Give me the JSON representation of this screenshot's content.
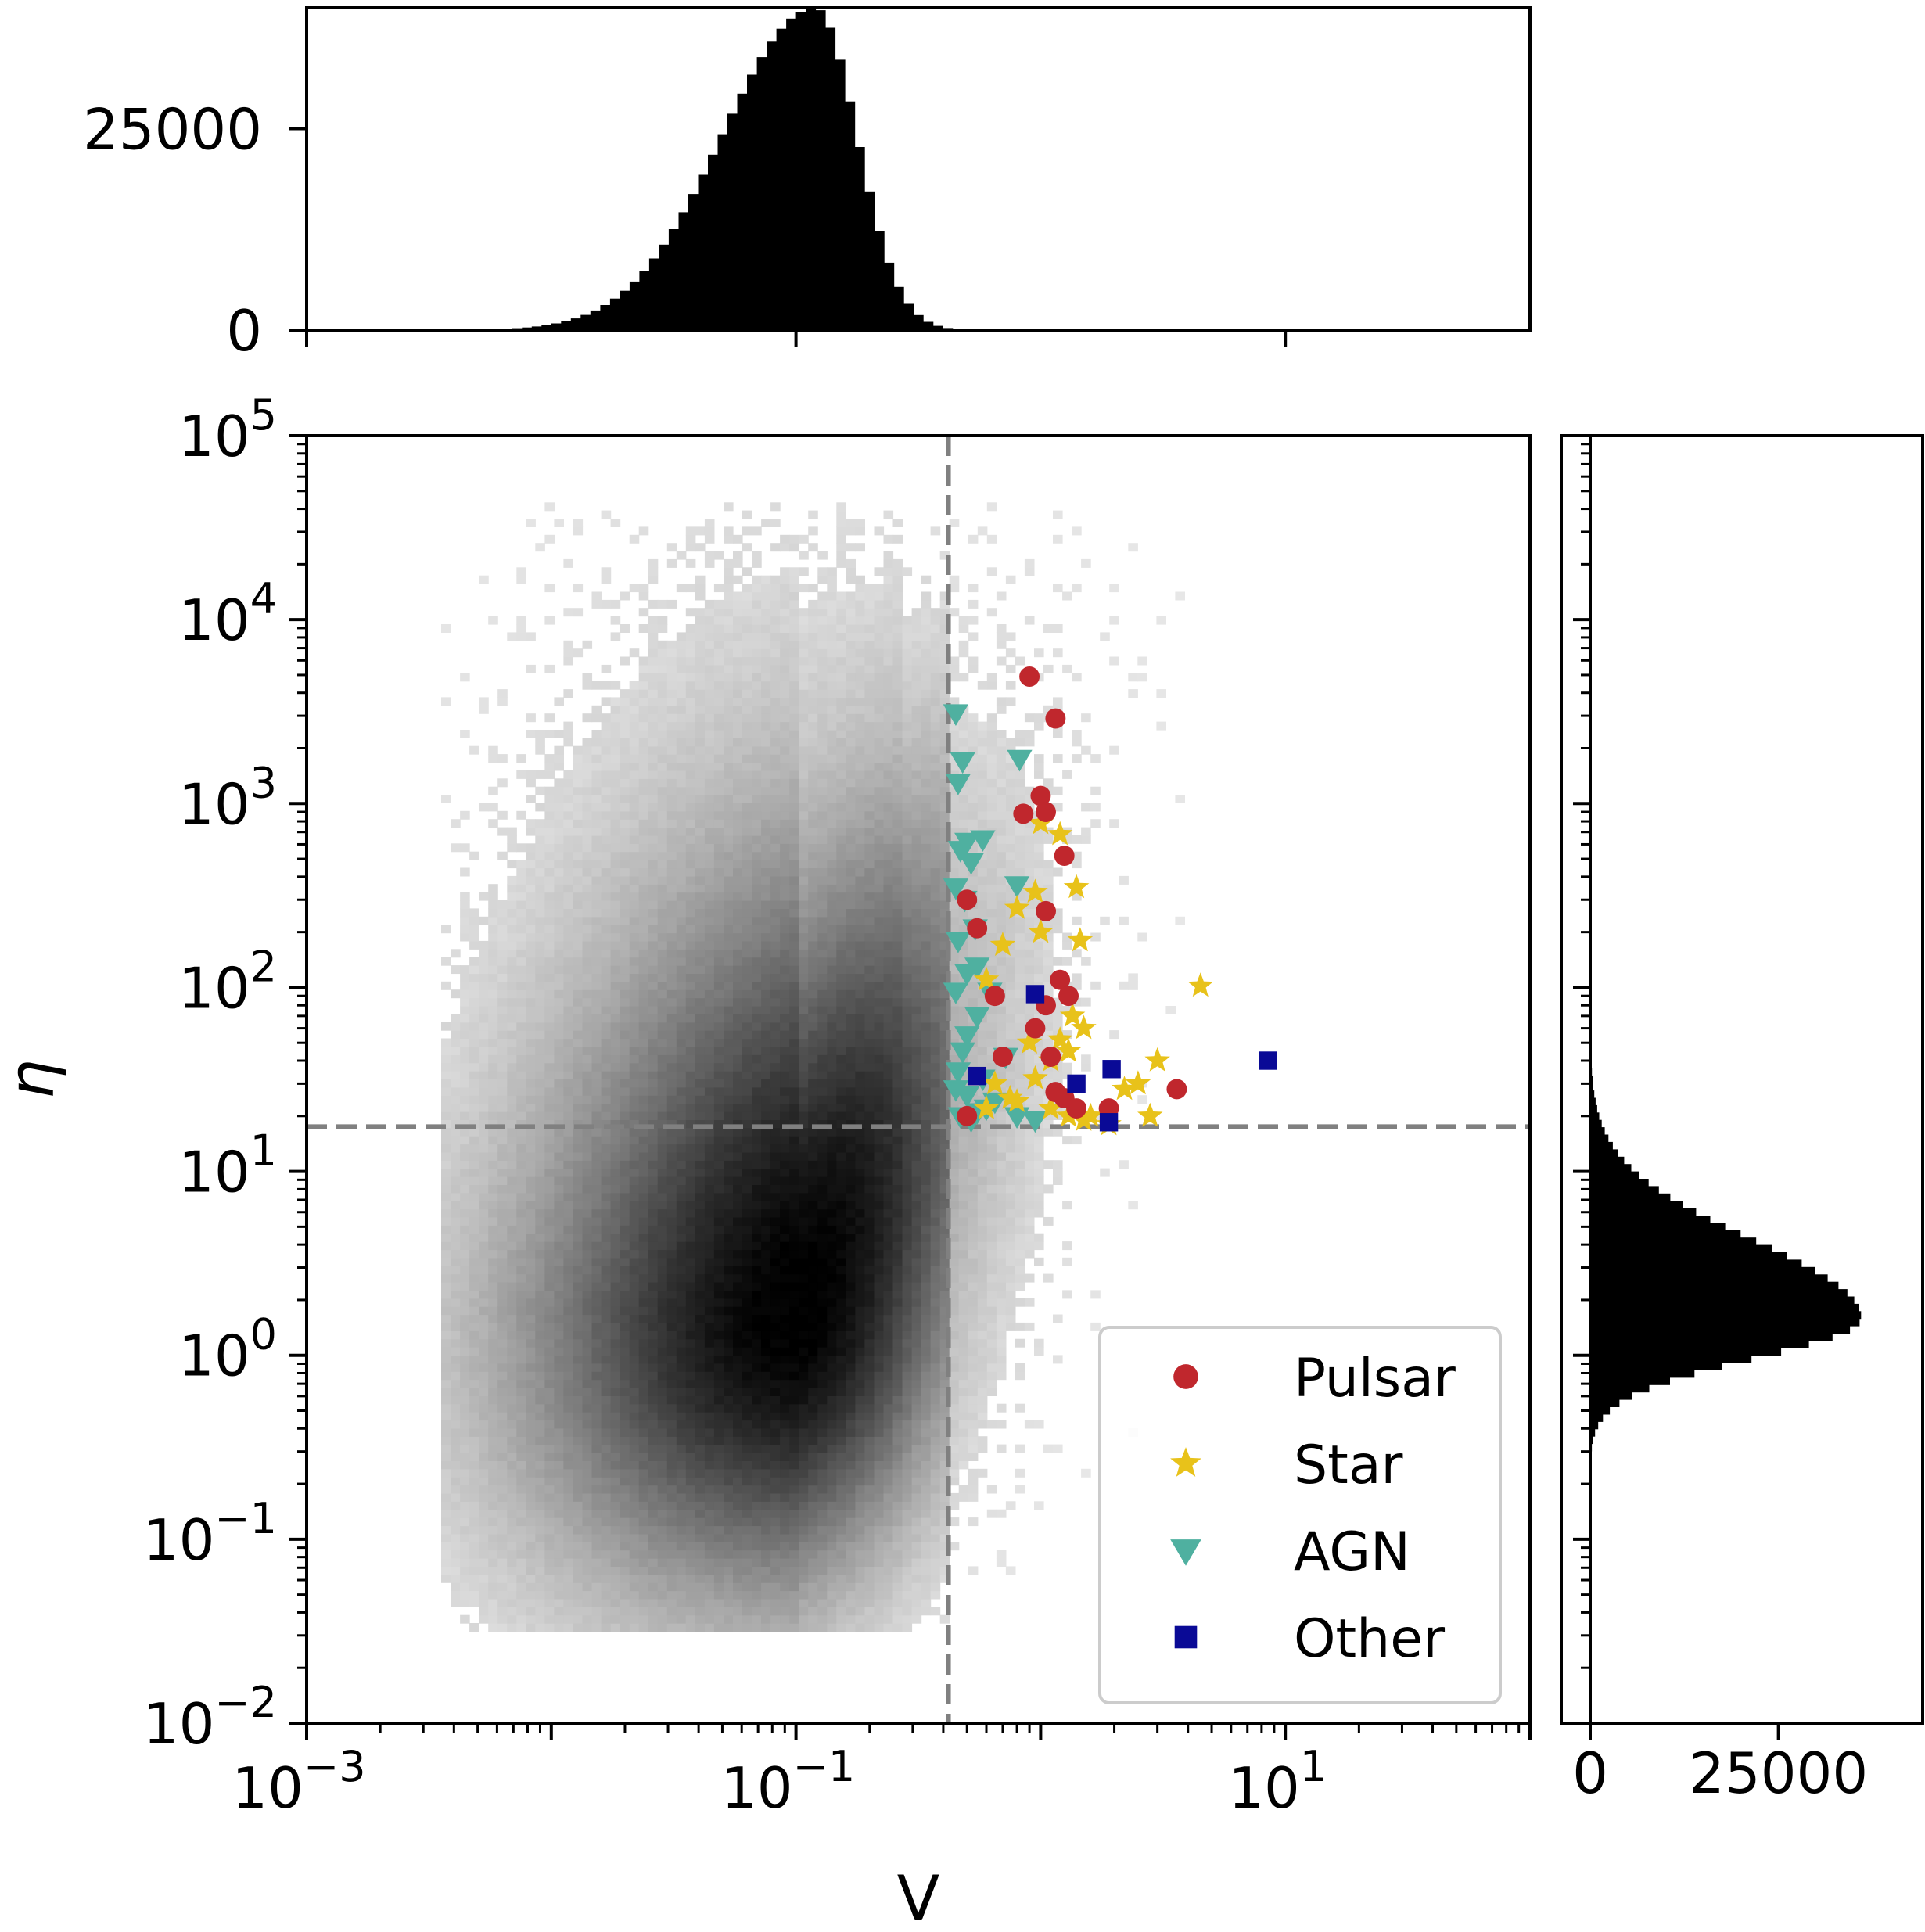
{
  "chart_data": {
    "type": "scatter",
    "xlabel": "V",
    "ylabel": "η",
    "xscale": "log",
    "yscale": "log",
    "xlim": [
      0.001,
      100
    ],
    "ylim": [
      0.01,
      100000
    ],
    "x_tick_labels": [
      "10^-3",
      "10^-1",
      "10^1"
    ],
    "y_tick_labels": [
      "10^-2",
      "10^-1",
      "10^0",
      "10^1",
      "10^2",
      "10^3",
      "10^4",
      "10^5"
    ],
    "thresholds": {
      "V": 0.42,
      "eta": 17.5
    },
    "legend": {
      "position": "lower right",
      "entries": [
        "Pulsar",
        "Star",
        "AGN",
        "Other"
      ]
    },
    "colors": {
      "Pulsar": "#c0272d",
      "Star": "#e8c21a",
      "AGN": "#4fb0a0",
      "Other": "#0a0a96",
      "threshold": "#808080"
    },
    "series": [
      {
        "name": "Pulsar",
        "marker": "circle",
        "points": [
          [
            0.9,
            4900
          ],
          [
            1.15,
            2900
          ],
          [
            1.0,
            1100
          ],
          [
            0.85,
            880
          ],
          [
            1.05,
            900
          ],
          [
            1.25,
            520
          ],
          [
            1.05,
            260
          ],
          [
            0.5,
            300
          ],
          [
            0.55,
            210
          ],
          [
            0.65,
            90
          ],
          [
            1.2,
            110
          ],
          [
            1.3,
            90
          ],
          [
            1.05,
            80
          ],
          [
            0.95,
            60
          ],
          [
            1.1,
            42
          ],
          [
            0.7,
            42
          ],
          [
            1.15,
            27
          ],
          [
            1.25,
            25
          ],
          [
            1.9,
            22
          ],
          [
            3.6,
            28
          ],
          [
            0.5,
            20
          ],
          [
            1.4,
            22
          ]
        ]
      },
      {
        "name": "Star",
        "marker": "star",
        "points": [
          [
            1.0,
            780
          ],
          [
            1.2,
            680
          ],
          [
            0.95,
            330
          ],
          [
            1.4,
            350
          ],
          [
            0.8,
            270
          ],
          [
            1.45,
            180
          ],
          [
            1.0,
            200
          ],
          [
            0.7,
            170
          ],
          [
            0.6,
            110
          ],
          [
            1.35,
            70
          ],
          [
            1.5,
            60
          ],
          [
            1.3,
            45
          ],
          [
            1.1,
            40
          ],
          [
            0.9,
            50
          ],
          [
            1.2,
            52
          ],
          [
            0.65,
            30
          ],
          [
            0.75,
            25
          ],
          [
            0.95,
            32
          ],
          [
            1.1,
            22
          ],
          [
            1.3,
            20
          ],
          [
            1.6,
            20
          ],
          [
            2.2,
            28
          ],
          [
            3.0,
            40
          ],
          [
            4.5,
            102
          ],
          [
            2.8,
            20
          ],
          [
            1.9,
            18
          ],
          [
            1.5,
            19
          ],
          [
            0.8,
            24
          ],
          [
            0.6,
            22
          ],
          [
            2.5,
            30
          ]
        ]
      },
      {
        "name": "AGN",
        "marker": "triangle-down",
        "points": [
          [
            0.45,
            3100
          ],
          [
            0.48,
            1700
          ],
          [
            0.46,
            1300
          ],
          [
            0.82,
            1750
          ],
          [
            0.5,
            620
          ],
          [
            0.58,
            640
          ],
          [
            0.47,
            560
          ],
          [
            0.52,
            480
          ],
          [
            0.45,
            350
          ],
          [
            0.8,
            360
          ],
          [
            0.49,
            300
          ],
          [
            0.54,
            210
          ],
          [
            0.46,
            180
          ],
          [
            0.55,
            130
          ],
          [
            0.5,
            120
          ],
          [
            0.62,
            95
          ],
          [
            0.45,
            95
          ],
          [
            0.55,
            70
          ],
          [
            0.5,
            55
          ],
          [
            0.48,
            45
          ],
          [
            0.72,
            42
          ],
          [
            0.46,
            35
          ],
          [
            0.58,
            32
          ],
          [
            0.45,
            28
          ],
          [
            0.5,
            26
          ],
          [
            0.65,
            24
          ],
          [
            0.6,
            22
          ],
          [
            0.47,
            20
          ],
          [
            0.52,
            19
          ],
          [
            0.55,
            21
          ],
          [
            0.95,
            19
          ],
          [
            0.8,
            20
          ]
        ]
      },
      {
        "name": "Other",
        "marker": "square",
        "points": [
          [
            0.95,
            92
          ],
          [
            0.55,
            33
          ],
          [
            1.4,
            30
          ],
          [
            1.95,
            36
          ],
          [
            1.9,
            18.5
          ],
          [
            8.5,
            40
          ]
        ]
      }
    ],
    "density_2d": {
      "description_values": "peak near V≈0.1, η≈1.5; spread V 0.005–3, η 0.05–20000",
      "center_logV": -1.0,
      "center_logEta": 0.18
    },
    "top_hist": {
      "ylim": [
        0,
        40000
      ],
      "tick_labels": [
        "0",
        "25000"
      ],
      "peak_x": 0.12,
      "peak_count": 40000
    },
    "right_hist": {
      "xlim": [
        0,
        40000
      ],
      "tick_labels": [
        "0",
        "25000"
      ],
      "peak_eta": 1.6,
      "peak_count": 36000
    }
  }
}
